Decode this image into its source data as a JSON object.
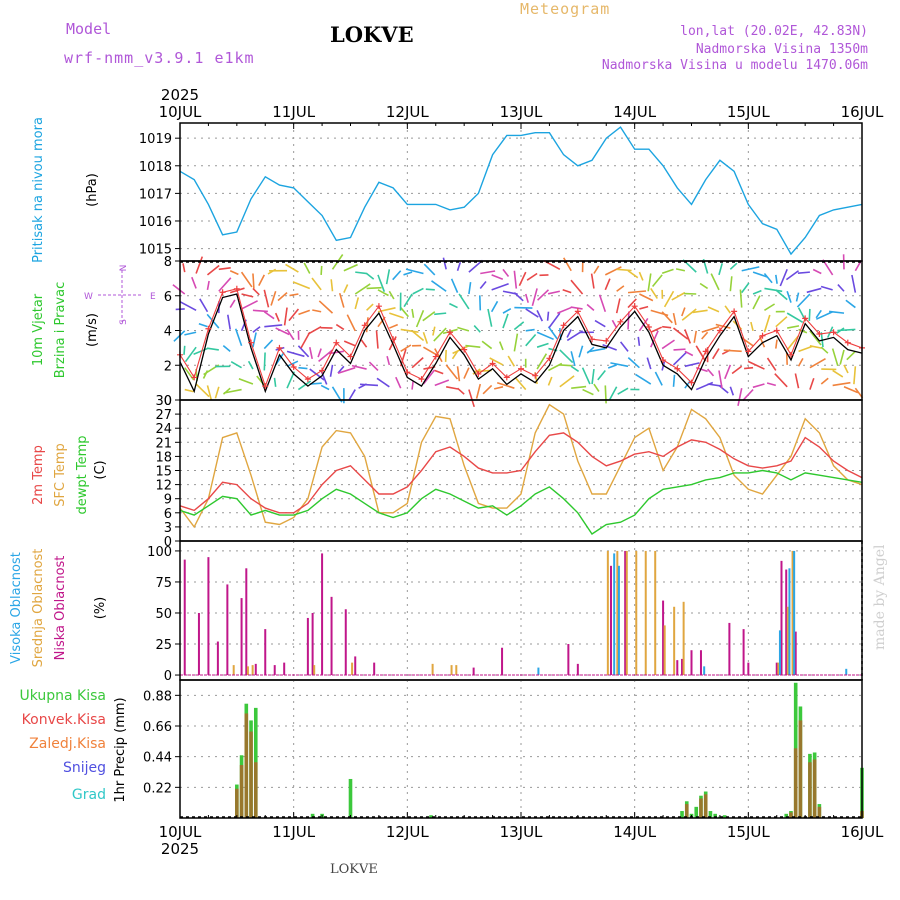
{
  "header": {
    "model_label": "Model",
    "model_name": "wrf-nmm_v3.9.1 e1km",
    "station": "LOKVE",
    "meteogram": "Meteogram",
    "lonlat": "lon,lat (20.02E, 42.83N)",
    "altitude": "Nadmorska Visina 1350m",
    "model_altitude": "Nadmorska Visina u modelu 1470.06m"
  },
  "footer": {
    "station": "LOKVE",
    "credit": "made by Angel"
  },
  "colors": {
    "pressure": "#1ca4e0",
    "wind_black": "#000000",
    "wind_red": "#ee3e3e",
    "temp2m": "#e84848",
    "sfc": "#e0a640",
    "dew": "#2ec82e",
    "cloud_high": "#2ba6e6",
    "cloud_mid": "#e0a640",
    "cloud_low": "#c0168a",
    "precip_total": "#3cc83c",
    "precip_conv": "#e84848",
    "precip_frozen": "#f0823c",
    "snow": "#5050e0",
    "hail": "#30c8c8",
    "purple": "#b057d8"
  },
  "chart_data": [
    {
      "type": "line",
      "title": "Pritisak na nivou mora",
      "ylabel": "(hPa)",
      "x_start": "2025-07-10T00:00",
      "x_end": "2025-07-16T00:00",
      "x_ticks": [
        "10JUL",
        "11JUL",
        "12JUL",
        "13JUL",
        "14JUL",
        "15JUL",
        "16JUL"
      ],
      "x_year": "2025",
      "yticks": [
        "1015",
        "1016",
        "1017",
        "1018",
        "1019"
      ],
      "ylim": [
        1014.55,
        1019.55
      ],
      "series": [
        {
          "x_hours": [
            0,
            3,
            6,
            9,
            12,
            15,
            18,
            21,
            24,
            27,
            30,
            33,
            36,
            39,
            42,
            45,
            48,
            51,
            54,
            57,
            60,
            63,
            66,
            69,
            72,
            75,
            78,
            81,
            84,
            87,
            90,
            93,
            96,
            99,
            102,
            105,
            108,
            111,
            114,
            117,
            120,
            123,
            126,
            129,
            132,
            135,
            138,
            141,
            144
          ],
          "values": [
            1017.8,
            1017.5,
            1016.6,
            1015.5,
            1015.6,
            1016.8,
            1017.6,
            1017.3,
            1017.2,
            1016.7,
            1016.2,
            1015.3,
            1015.4,
            1016.5,
            1017.4,
            1017.2,
            1016.6,
            1016.6,
            1016.6,
            1016.4,
            1016.5,
            1017.0,
            1018.4,
            1019.1,
            1019.1,
            1019.2,
            1019.2,
            1018.4,
            1018.0,
            1018.2,
            1019.0,
            1019.4,
            1018.6,
            1018.6,
            1018.0,
            1017.2,
            1016.6,
            1017.5,
            1018.2,
            1017.8,
            1016.6,
            1015.9,
            1015.7,
            1014.8,
            1015.4,
            1016.2,
            1016.4,
            1016.5,
            1016.6
          ]
        }
      ]
    },
    {
      "type": "line",
      "title": "10m Vjetar",
      "subtitle": "Brzina i Pravac",
      "ylabel": "(m/s)",
      "yticks": [
        "0",
        "2",
        "4",
        "6",
        "8"
      ],
      "ylim": [
        0,
        8
      ],
      "compass": [
        "W",
        "E",
        "N",
        "S"
      ],
      "x_start": "2025-07-10T00:00",
      "x_end": "2025-07-16T00:00",
      "series": [
        {
          "x_hours": [
            0,
            3,
            6,
            9,
            12,
            15,
            18,
            21,
            24,
            27,
            30,
            33,
            36,
            39,
            42,
            45,
            48,
            51,
            54,
            57,
            60,
            63,
            66,
            69,
            72,
            75,
            78,
            81,
            84,
            87,
            90,
            93,
            96,
            99,
            102,
            105,
            108,
            111,
            114,
            117,
            120,
            123,
            126,
            129,
            132,
            135,
            138,
            141,
            144
          ],
          "values": [
            2.2,
            0.5,
            3.8,
            5.9,
            6.1,
            3.0,
            0.5,
            2.6,
            1.5,
            0.8,
            1.4,
            2.9,
            2.1,
            4.0,
            5.0,
            3.2,
            1.3,
            0.8,
            2.1,
            3.6,
            2.6,
            1.2,
            1.8,
            0.9,
            1.5,
            1.0,
            2.0,
            4.0,
            4.8,
            3.2,
            3.0,
            4.2,
            5.1,
            3.9,
            2.0,
            1.5,
            0.6,
            2.4,
            3.7,
            4.8,
            2.5,
            3.3,
            3.7,
            2.3,
            4.4,
            3.4,
            3.6,
            2.9,
            2.7
          ]
        },
        {
          "x_hours": [
            0,
            3,
            6,
            9,
            12,
            15,
            18,
            21,
            24,
            27,
            30,
            33,
            36,
            39,
            42,
            45,
            48,
            51,
            54,
            57,
            60,
            63,
            66,
            69,
            72,
            75,
            78,
            81,
            84,
            87,
            90,
            93,
            96,
            99,
            102,
            105,
            108,
            111,
            114,
            117,
            120,
            123,
            126,
            129,
            132,
            135,
            138,
            141,
            144
          ],
          "values": [
            2.6,
            1.3,
            4.1,
            6.2,
            6.4,
            3.3,
            0.8,
            3.0,
            1.9,
            1.2,
            1.7,
            3.3,
            2.5,
            4.3,
            5.4,
            3.5,
            1.6,
            1.2,
            2.5,
            3.9,
            2.9,
            1.5,
            2.1,
            1.3,
            1.8,
            1.4,
            2.4,
            4.3,
            5.1,
            3.5,
            3.4,
            4.5,
            5.4,
            4.2,
            2.3,
            1.8,
            1.0,
            2.8,
            4.0,
            5.1,
            2.8,
            3.7,
            4.0,
            2.6,
            4.7,
            3.8,
            3.9,
            3.3,
            3.0
          ]
        }
      ]
    },
    {
      "type": "line",
      "title": "2m Temp",
      "subtitle": "SFC Temp",
      "subtitle2": "dewpt Temp",
      "ylabel": "(C)",
      "yticks": [
        "0",
        "3",
        "6",
        "9",
        "12",
        "15",
        "18",
        "21",
        "24",
        "27",
        "30"
      ],
      "ylim": [
        0,
        30
      ],
      "x_start": "2025-07-10T00:00",
      "x_end": "2025-07-16T00:00",
      "series": [
        {
          "x_hours": [
            0,
            3,
            6,
            9,
            12,
            15,
            18,
            21,
            24,
            27,
            30,
            33,
            36,
            39,
            42,
            45,
            48,
            51,
            54,
            57,
            60,
            63,
            66,
            69,
            72,
            75,
            78,
            81,
            84,
            87,
            90,
            93,
            96,
            99,
            102,
            105,
            108,
            111,
            114,
            117,
            120,
            123,
            126,
            129,
            132,
            135,
            138,
            141,
            144
          ],
          "values": [
            7.5,
            6.5,
            9.0,
            12.5,
            12.0,
            9.0,
            7.0,
            6.0,
            6.0,
            8.0,
            12.0,
            15.0,
            16.0,
            13.0,
            10.0,
            10.0,
            11.5,
            15.0,
            19.0,
            20.0,
            18.0,
            15.5,
            14.5,
            14.5,
            15.0,
            19.0,
            22.5,
            23.0,
            21.0,
            18.0,
            16.0,
            17.0,
            18.5,
            19.0,
            18.0,
            20.0,
            21.5,
            21.0,
            19.5,
            17.5,
            16.0,
            15.5,
            16.0,
            17.0,
            22.0,
            20.0,
            17.0,
            15.0,
            13.5
          ]
        },
        {
          "x_hours": [
            0,
            3,
            6,
            9,
            12,
            15,
            18,
            21,
            24,
            27,
            30,
            33,
            36,
            39,
            42,
            45,
            48,
            51,
            54,
            57,
            60,
            63,
            66,
            69,
            72,
            75,
            78,
            81,
            84,
            87,
            90,
            93,
            96,
            99,
            102,
            105,
            108,
            111,
            114,
            117,
            120,
            123,
            126,
            129,
            132,
            135,
            138,
            141,
            144
          ],
          "values": [
            7.0,
            3.0,
            9.0,
            22.0,
            23.0,
            14.0,
            4.0,
            3.5,
            5.0,
            9.0,
            20.0,
            23.5,
            23.0,
            18.0,
            6.0,
            6.0,
            8.0,
            21.0,
            26.5,
            26.0,
            16.0,
            8.0,
            7.0,
            7.0,
            10.0,
            23.0,
            29.0,
            27.0,
            17.0,
            10.0,
            10.0,
            16.0,
            22.0,
            24.0,
            15.0,
            20.0,
            28.0,
            26.0,
            22.0,
            14.0,
            11.0,
            10.0,
            14.0,
            18.0,
            26.0,
            23.0,
            16.0,
            13.0,
            12.0
          ]
        },
        {
          "x_hours": [
            0,
            3,
            6,
            9,
            12,
            15,
            18,
            21,
            24,
            27,
            30,
            33,
            36,
            39,
            42,
            45,
            48,
            51,
            54,
            57,
            60,
            63,
            66,
            69,
            72,
            75,
            78,
            81,
            84,
            87,
            90,
            93,
            96,
            99,
            102,
            105,
            108,
            111,
            114,
            117,
            120,
            123,
            126,
            129,
            132,
            135,
            138,
            141,
            144
          ],
          "values": [
            6.5,
            5.5,
            7.5,
            9.5,
            9.0,
            5.5,
            6.5,
            5.5,
            5.5,
            6.5,
            9.0,
            11.0,
            10.0,
            8.0,
            6.0,
            5.0,
            6.0,
            9.0,
            11.0,
            10.0,
            8.5,
            7.0,
            7.5,
            5.5,
            7.5,
            10.0,
            11.5,
            9.0,
            6.0,
            1.5,
            3.5,
            4.0,
            5.5,
            9.0,
            11.0,
            11.5,
            12.0,
            13.0,
            13.5,
            14.5,
            14.5,
            15.0,
            14.5,
            13.0,
            14.5,
            14.0,
            13.5,
            13.0,
            12.5
          ]
        }
      ]
    },
    {
      "type": "bar",
      "title": "Visoka Oblacnost",
      "subtitle": "Srednja Oblacnost",
      "subtitle2": "Niska Oblacnost",
      "ylabel": "(%)",
      "yticks": [
        "0",
        "25",
        "50",
        "75",
        "100"
      ],
      "ylim": [
        0,
        100
      ],
      "x_start": "2025-07-10T00:00",
      "x_end": "2025-07-16T00:00",
      "series": [
        {
          "x_hours": [
            1,
            4,
            6,
            8,
            10,
            13,
            14,
            16,
            18,
            20,
            22,
            27,
            28,
            30,
            32,
            35,
            37,
            41,
            62,
            68,
            82,
            84,
            91,
            94,
            102,
            105,
            106,
            108,
            110,
            116,
            119,
            120,
            126,
            127,
            128,
            130
          ],
          "values": [
            93,
            50,
            95,
            27,
            73,
            62,
            86,
            9,
            37,
            8,
            10,
            46,
            50,
            98,
            63,
            53,
            15,
            10,
            6,
            22,
            25,
            9,
            88,
            100,
            60,
            12,
            13,
            20,
            20,
            42,
            37,
            10,
            10,
            92,
            85,
            35
          ]
        },
        {
          "x_hours": [
            11,
            14,
            15,
            28,
            36,
            53,
            57,
            58,
            90,
            92,
            94,
            96,
            98,
            100,
            102,
            104,
            106,
            126,
            128,
            129
          ],
          "values": [
            8,
            7,
            8,
            8,
            10,
            9,
            8,
            8,
            100,
            100,
            100,
            100,
            100,
            100,
            40,
            55,
            59,
            10,
            55,
            100
          ]
        },
        {
          "x_hours": [
            75,
            91,
            92,
            110,
            126,
            128,
            129,
            140
          ],
          "values": [
            6,
            98,
            88,
            7,
            36,
            86,
            100,
            5
          ]
        }
      ]
    },
    {
      "type": "bar",
      "title": "Ukupna Kisa",
      "subtitle": "Konvek.Kisa",
      "subtitle2": "Zaledj.Kisa",
      "subtitle3": "Snijeg",
      "subtitle4": "Grad",
      "ylabel": "1hr Precip (mm)",
      "yticks": [
        "0.22",
        "0.44",
        "0.66",
        "0.88"
      ],
      "ylim": [
        0,
        0.99
      ],
      "x_start": "2025-07-10T00:00",
      "x_end": "2025-07-16T00:00",
      "series": [
        {
          "x_hours": [
            12,
            13,
            14,
            15,
            16,
            28,
            30,
            36,
            53,
            106,
            107,
            108,
            109,
            110,
            111,
            112,
            113,
            114,
            115,
            128,
            129,
            130,
            131,
            132,
            133,
            134,
            135,
            144
          ],
          "values": [
            0.24,
            0.45,
            0.82,
            0.7,
            0.79,
            0.03,
            0.03,
            0.28,
            0.02,
            0.05,
            0.12,
            0.03,
            0.08,
            0.16,
            0.19,
            0.05,
            0.03,
            0.01,
            0.02,
            0.03,
            0.05,
            0.97,
            0.8,
            0.01,
            0.46,
            0.47,
            0.1,
            0.36
          ]
        },
        {
          "x_hours": [
            12,
            13,
            14,
            15,
            16,
            107,
            110,
            111,
            129,
            130,
            131,
            132,
            133,
            134,
            135,
            144
          ],
          "values": [
            0.21,
            0.38,
            0.75,
            0.62,
            0.4,
            0.1,
            0.14,
            0.17,
            0.04,
            0.5,
            0.7,
            0.01,
            0.4,
            0.42,
            0.08,
            0.05
          ]
        }
      ]
    }
  ]
}
